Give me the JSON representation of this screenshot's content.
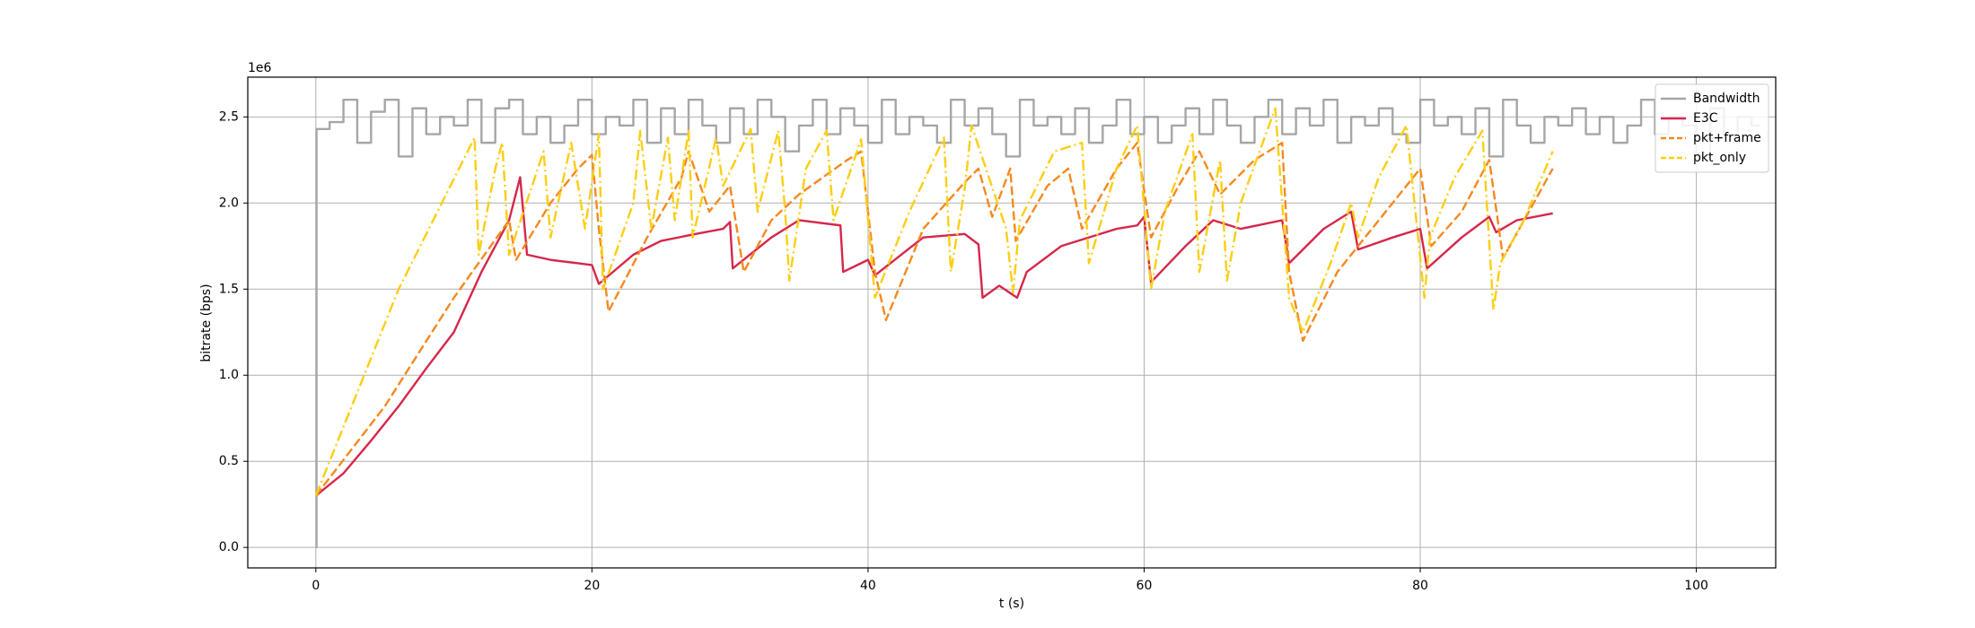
{
  "chart_data": {
    "type": "line",
    "xlabel": "t (s)",
    "ylabel": "bitrate (bps)",
    "y_offset_label": "1e6",
    "xlim": [
      -4.93,
      105.75
    ],
    "ylim": [
      -119000,
      2731000
    ],
    "xticks": [
      0,
      20,
      40,
      60,
      80,
      100
    ],
    "yticks": [
      {
        "value": 0,
        "label": "0.0"
      },
      {
        "value": 500000,
        "label": "0.5"
      },
      {
        "value": 1000000,
        "label": "1.0"
      },
      {
        "value": 1500000,
        "label": "1.5"
      },
      {
        "value": 2000000,
        "label": "2.0"
      },
      {
        "value": 2500000,
        "label": "2.5"
      }
    ],
    "grid": true,
    "legend": "upper right",
    "series": [
      {
        "name": "Bandwidth",
        "color": "#a6a6a6",
        "linestyle": "solid",
        "drawstyle": "steps-post",
        "x": [
          0,
          0.05,
          1,
          2,
          3,
          4,
          5,
          6,
          7,
          8,
          9,
          10,
          11,
          12,
          13,
          14,
          15,
          16,
          17,
          18,
          19,
          20,
          21,
          22,
          23,
          24,
          25,
          26,
          27,
          28,
          29,
          30,
          31,
          32,
          33,
          34,
          35,
          36,
          37,
          38,
          39,
          40,
          41,
          42,
          43,
          44,
          45,
          46,
          47,
          48,
          49,
          50,
          51,
          52,
          53,
          54,
          55,
          56,
          57,
          58,
          59,
          60,
          61,
          62,
          63,
          64,
          65,
          66,
          67,
          68,
          69,
          70,
          71,
          72,
          73,
          74,
          75,
          76,
          77,
          78,
          79,
          80,
          81,
          82,
          83,
          84,
          85,
          86,
          87,
          88,
          89,
          90,
          91,
          92,
          93,
          94,
          95,
          96,
          97,
          98,
          99,
          100,
          101,
          102,
          103,
          104,
          104.6
        ],
        "values": [
          0,
          2430000,
          2470000,
          2600000,
          2350000,
          2530000,
          2600000,
          2270000,
          2550000,
          2400000,
          2500000,
          2450000,
          2600000,
          2350000,
          2550000,
          2600000,
          2400000,
          2500000,
          2350000,
          2450000,
          2600000,
          2400000,
          2500000,
          2450000,
          2600000,
          2350000,
          2550000,
          2400000,
          2600000,
          2450000,
          2350000,
          2550000,
          2400000,
          2600000,
          2500000,
          2300000,
          2450000,
          2600000,
          2400000,
          2550000,
          2450000,
          2350000,
          2600000,
          2400000,
          2500000,
          2450000,
          2350000,
          2600000,
          2450000,
          2550000,
          2400000,
          2270000,
          2600000,
          2450000,
          2500000,
          2400000,
          2550000,
          2350000,
          2450000,
          2600000,
          2400000,
          2500000,
          2350000,
          2450000,
          2550000,
          2400000,
          2600000,
          2450000,
          2350000,
          2500000,
          2600000,
          2400000,
          2550000,
          2450000,
          2600000,
          2350000,
          2500000,
          2450000,
          2550000,
          2400000,
          2350000,
          2600000,
          2450000,
          2500000,
          2400000,
          2550000,
          2270000,
          2600000,
          2450000,
          2350000,
          2500000,
          2450000,
          2550000,
          2400000,
          2500000,
          2350000,
          2450000,
          2600000,
          2400000,
          2500000,
          2450000,
          2270000,
          2550000,
          2400000,
          2500000,
          2450000,
          2450000
        ]
      },
      {
        "name": "E3C",
        "color": "#d6264a",
        "linestyle": "solid",
        "x": [
          0,
          2,
          4,
          6,
          8,
          10,
          12,
          14,
          14.8,
          15.3,
          17,
          19,
          20,
          20.5,
          23,
          25,
          27.5,
          29.5,
          30,
          30.2,
          33,
          35,
          38,
          38.2,
          40,
          40.5,
          44,
          47,
          48,
          48.3,
          49.5,
          50.8,
          51.5,
          54,
          58,
          59.5,
          60,
          60.5,
          63,
          65,
          67,
          70,
          70.5,
          73,
          75,
          75.5,
          78,
          80,
          80.5,
          83,
          85,
          85.5,
          87,
          89.6
        ],
        "values": [
          300000,
          430000,
          620000,
          820000,
          1040000,
          1250000,
          1600000,
          1900000,
          2150000,
          1700000,
          1670000,
          1650000,
          1640000,
          1530000,
          1700000,
          1780000,
          1820000,
          1850000,
          1890000,
          1620000,
          1800000,
          1900000,
          1870000,
          1600000,
          1670000,
          1580000,
          1800000,
          1820000,
          1760000,
          1450000,
          1520000,
          1450000,
          1600000,
          1750000,
          1850000,
          1870000,
          1920000,
          1540000,
          1750000,
          1900000,
          1850000,
          1900000,
          1650000,
          1850000,
          1950000,
          1730000,
          1800000,
          1850000,
          1620000,
          1800000,
          1920000,
          1830000,
          1900000,
          1940000
        ]
      },
      {
        "name": "pkt+frame",
        "color": "#f5891f",
        "linestyle": "dashed",
        "x": [
          0,
          5,
          10,
          14,
          14.5,
          17,
          19,
          20,
          20.5,
          21.2,
          24,
          26.5,
          27,
          28.5,
          30,
          31,
          33,
          35,
          38.5,
          39.5,
          40.5,
          41.3,
          44,
          47,
          48,
          49,
          50.3,
          50.7,
          53,
          54.5,
          55.5,
          58,
          59.5,
          60.5,
          62.5,
          64,
          65.5,
          68,
          70,
          70.5,
          71.5,
          74,
          77,
          80,
          80.8,
          83,
          85,
          86,
          89.6
        ],
        "values": [
          300000,
          820000,
          1450000,
          1900000,
          1670000,
          2000000,
          2200000,
          2280000,
          1850000,
          1370000,
          1800000,
          2150000,
          2300000,
          1950000,
          2100000,
          1600000,
          1900000,
          2050000,
          2250000,
          2300000,
          1600000,
          1320000,
          1850000,
          2120000,
          2200000,
          1920000,
          2200000,
          1780000,
          2100000,
          2200000,
          1850000,
          2200000,
          2350000,
          1800000,
          2100000,
          2300000,
          2050000,
          2250000,
          2350000,
          1600000,
          1200000,
          1600000,
          1900000,
          2200000,
          1750000,
          1950000,
          2250000,
          1680000,
          2200000
        ]
      },
      {
        "name": "pkt_only",
        "color": "#fcce14",
        "linestyle": "dashdot",
        "x": [
          0,
          6,
          11,
          11.5,
          11.8,
          13,
          13.5,
          14,
          16.5,
          17,
          18.5,
          19.5,
          20.5,
          20.8,
          23,
          23.5,
          24.3,
          25.5,
          26,
          27,
          27.3,
          29,
          29.5,
          31.5,
          32,
          33.5,
          34,
          34.3,
          35.5,
          37,
          37.5,
          39.5,
          40.5,
          43,
          45.5,
          46,
          47,
          47.5,
          50,
          50.5,
          51,
          53.5,
          55.5,
          56,
          58,
          59.5,
          60.5,
          61.5,
          63.5,
          64,
          65.5,
          66,
          67,
          69.5,
          70.5,
          71.5,
          73.5,
          75,
          75.5,
          77,
          79,
          80.3,
          80.7,
          82.5,
          84.5,
          85.3,
          85.8,
          87.5,
          89.6
        ],
        "values": [
          300000,
          1500000,
          2300000,
          2380000,
          1700000,
          2200000,
          2350000,
          1700000,
          2300000,
          1800000,
          2350000,
          1850000,
          2400000,
          1500000,
          2000000,
          2420000,
          1850000,
          2380000,
          1900000,
          2420000,
          1800000,
          2380000,
          2100000,
          2430000,
          1950000,
          2420000,
          1950000,
          1550000,
          2200000,
          2420000,
          1900000,
          2370000,
          1450000,
          1950000,
          2380000,
          1600000,
          2080000,
          2450000,
          1850000,
          1480000,
          1900000,
          2300000,
          2350000,
          1650000,
          2200000,
          2450000,
          1500000,
          1950000,
          2400000,
          1600000,
          2250000,
          1550000,
          2000000,
          2550000,
          1450000,
          1250000,
          1650000,
          2000000,
          1800000,
          2150000,
          2450000,
          1450000,
          1800000,
          2150000,
          2420000,
          1380000,
          1650000,
          1900000,
          2300000
        ]
      }
    ]
  }
}
